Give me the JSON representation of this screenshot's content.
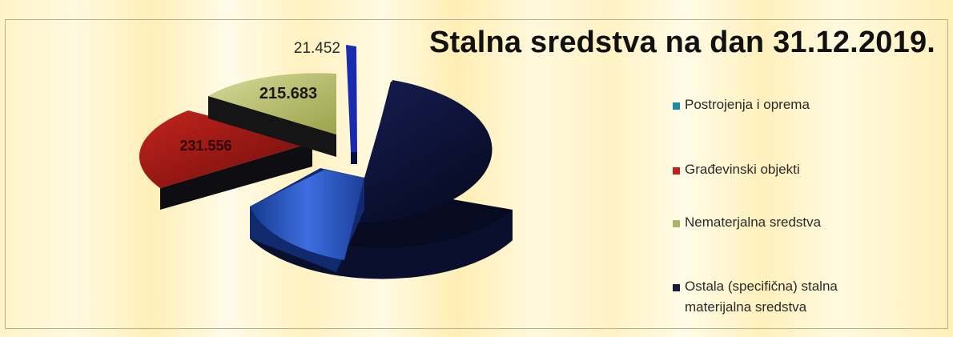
{
  "colors": {
    "postrojenja": "#2f5fd0",
    "gradevinski": "#a11a16",
    "nematerjalna": "#b8c06a",
    "ostala": "#10163a"
  },
  "chart_data": {
    "type": "pie",
    "title": "Stalna sredstva na dan 31.12.2019.",
    "legend_position": "right",
    "three_d": true,
    "exploded": true,
    "slices": [
      {
        "name": "Postrojenja i oprema",
        "value": null,
        "label": "",
        "color": "#2f5fd0"
      },
      {
        "name": "Građevinski objekti",
        "value": 231.556,
        "label": "231.556",
        "color": "#a11a16"
      },
      {
        "name": "Nematerjalna sredstva",
        "value": 215.683,
        "label": "215.683",
        "color": "#b8c06a"
      },
      {
        "name": "Ostala (specifična) stalna materijalna sredstva",
        "value": 21.452,
        "label": "21.452",
        "color": "#10163a"
      }
    ]
  }
}
